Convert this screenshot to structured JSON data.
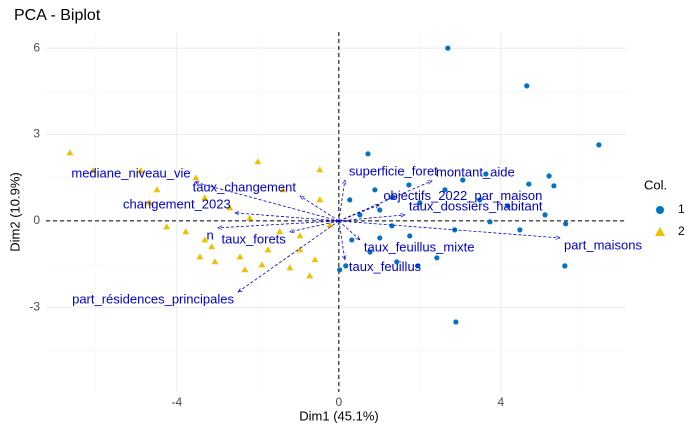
{
  "chart_data": {
    "type": "scatter",
    "title": "PCA - Biplot",
    "x_label": "Dim1 (45.1%)",
    "y_label": "Dim2 (10.9%)",
    "xlim": [
      -7.23,
      7.09
    ],
    "ylim": [
      -5.94,
      6.56
    ],
    "xticks": [
      -4,
      0,
      4
    ],
    "yticks": [
      -3,
      0,
      3,
      6
    ],
    "grid": true,
    "legend_title": "Col.",
    "legend_position": "right",
    "series": [
      {
        "name": "1",
        "color": "#0073C2",
        "marker": "circle",
        "x": [
          2.69,
          4.64,
          6.42,
          0.72,
          5.19,
          5.31,
          4.69,
          3.63,
          3.06,
          2.62,
          1.73,
          0.89,
          1.33,
          0.27,
          0.52,
          1.01,
          2.0,
          3.48,
          4.17,
          5.09,
          5.6,
          4.47,
          3.73,
          2.86,
          1.75,
          1.01,
          0.32,
          0.77,
          1.43,
          1.95,
          2.42,
          5.58,
          0.17,
          0.02,
          2.89,
          1.31
        ],
        "values": [
          6.0,
          4.69,
          2.64,
          2.33,
          1.56,
          1.22,
          1.28,
          1.63,
          1.42,
          1.08,
          1.25,
          1.08,
          0.83,
          0.73,
          0.21,
          0.38,
          0.63,
          0.73,
          0.52,
          0.21,
          -0.1,
          -0.31,
          -0.03,
          -0.31,
          -0.52,
          -0.59,
          -0.66,
          -1.08,
          -1.42,
          -1.56,
          -1.28,
          -1.56,
          -1.56,
          -1.7,
          -3.51,
          -0.17
        ]
      },
      {
        "name": "2",
        "color": "#EFC000",
        "marker": "triangle",
        "x": [
          -6.64,
          -6.07,
          -4.89,
          -4.49,
          -3.53,
          -2.0,
          -0.47,
          -4.67,
          -4.25,
          -3.31,
          -2.69,
          -1.38,
          -0.47,
          -3.78,
          -3.31,
          -3.14,
          -2.44,
          -1.75,
          -3.43,
          -3.06,
          -2.32,
          -1.9,
          -1.21,
          -0.72,
          -0.59,
          -0.96,
          -0.22,
          -2.2,
          -0.96,
          -1.46
        ],
        "values": [
          2.36,
          1.74,
          1.74,
          1.08,
          1.49,
          2.05,
          1.77,
          0.63,
          -0.21,
          0.8,
          0.45,
          1.08,
          0.73,
          -0.38,
          -0.66,
          -0.9,
          -1.25,
          -1.01,
          -1.25,
          -1.42,
          -1.7,
          -1.53,
          -1.63,
          -1.91,
          -1.35,
          -0.52,
          -0.14,
          0.1,
          -1.01,
          -0.38
        ]
      }
    ],
    "arrow_color": "#0000CD",
    "variables": [
      {
        "name": "superficie_foret",
        "x": 0.15,
        "y": 1.42
      },
      {
        "name": "montant_aide",
        "x": 2.3,
        "y": 1.39
      },
      {
        "name": "objectifs_2022_par_maison",
        "x": 1.0,
        "y": 0.56
      },
      {
        "name": "taux_dossiers_habitant",
        "x": 1.63,
        "y": 0.21
      },
      {
        "name": "part_maisons",
        "x": 5.46,
        "y": -0.59
      },
      {
        "name": "taux_feuillus_mixte",
        "x": 0.52,
        "y": -0.66
      },
      {
        "name": "taux_feuillus",
        "x": 0.15,
        "y": -1.35
      },
      {
        "name": "taux_forets",
        "x": -1.21,
        "y": -0.38
      },
      {
        "name": "part_résidences_principales",
        "x": -2.49,
        "y": -2.47
      },
      {
        "name": "n",
        "x": -2.99,
        "y": -0.24
      },
      {
        "name": "changement_2023",
        "x": -2.57,
        "y": 0.28
      },
      {
        "name": "mediane_niveau_vie",
        "x": -3.56,
        "y": 1.35
      },
      {
        "name": "taux_changement",
        "x": -0.96,
        "y": 0.87
      }
    ]
  }
}
